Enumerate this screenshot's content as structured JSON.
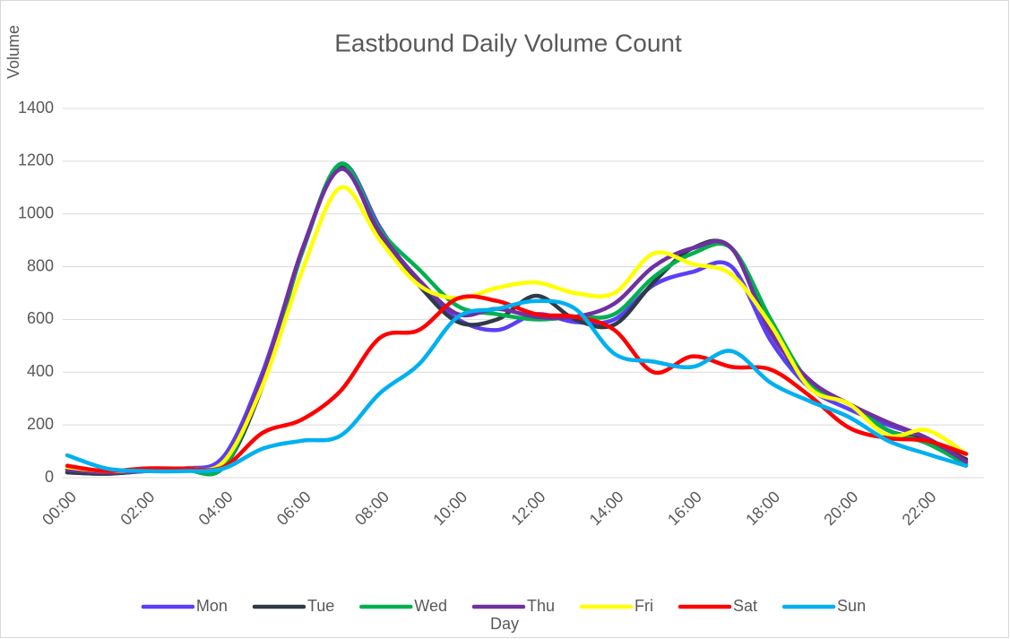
{
  "chart_data": {
    "type": "line",
    "title": "Eastbound Daily Volume Count",
    "y_label": "Volume",
    "x_label": "Day",
    "categories": [
      "00:00",
      null,
      "02:00",
      null,
      "04:00",
      null,
      "06:00",
      null,
      "08:00",
      null,
      "10:00",
      null,
      "12:00",
      null,
      "14:00",
      null,
      "16:00",
      null,
      "18:00",
      null,
      "20:00",
      null,
      "22:00",
      null
    ],
    "series": [
      {
        "name": "Mon",
        "color": "#5b3ff5",
        "values": [
          20,
          15,
          25,
          35,
          80,
          400,
          850,
          1190,
          950,
          730,
          600,
          560,
          620,
          590,
          600,
          730,
          780,
          800,
          520,
          340,
          260,
          200,
          150,
          60
        ]
      },
      {
        "name": "Tue",
        "color": "#2f3a48",
        "values": [
          20,
          15,
          25,
          30,
          40,
          350,
          850,
          1180,
          920,
          730,
          590,
          600,
          690,
          600,
          580,
          740,
          870,
          870,
          560,
          350,
          280,
          180,
          140,
          70
        ]
      },
      {
        "name": "Wed",
        "color": "#00b050",
        "values": [
          30,
          20,
          25,
          30,
          40,
          370,
          850,
          1190,
          940,
          790,
          650,
          620,
          600,
          610,
          620,
          760,
          850,
          870,
          600,
          360,
          280,
          180,
          130,
          50
        ]
      },
      {
        "name": "Thu",
        "color": "#7030a0",
        "values": [
          30,
          20,
          25,
          30,
          60,
          380,
          860,
          1170,
          930,
          750,
          620,
          640,
          610,
          610,
          660,
          800,
          870,
          870,
          550,
          370,
          280,
          210,
          150,
          60
        ]
      },
      {
        "name": "Fri",
        "color": "#ffff00",
        "values": [
          40,
          25,
          30,
          35,
          60,
          350,
          780,
          1100,
          900,
          730,
          680,
          720,
          740,
          700,
          700,
          850,
          810,
          770,
          580,
          340,
          280,
          160,
          180,
          90
        ]
      },
      {
        "name": "Sat",
        "color": "#ff0000",
        "values": [
          45,
          25,
          35,
          35,
          40,
          170,
          220,
          330,
          530,
          560,
          680,
          670,
          620,
          610,
          560,
          400,
          460,
          420,
          410,
          310,
          190,
          150,
          140,
          90
        ]
      },
      {
        "name": "Sun",
        "color": "#00b0f0",
        "values": [
          85,
          35,
          25,
          25,
          35,
          110,
          140,
          160,
          320,
          430,
          610,
          640,
          670,
          640,
          470,
          440,
          420,
          480,
          360,
          290,
          230,
          140,
          90,
          45
        ]
      }
    ],
    "ylim": [
      0,
      1400
    ],
    "yticks": [
      0,
      200,
      400,
      600,
      800,
      1000,
      1200,
      1400
    ],
    "grid": true,
    "legend": "bottom"
  }
}
